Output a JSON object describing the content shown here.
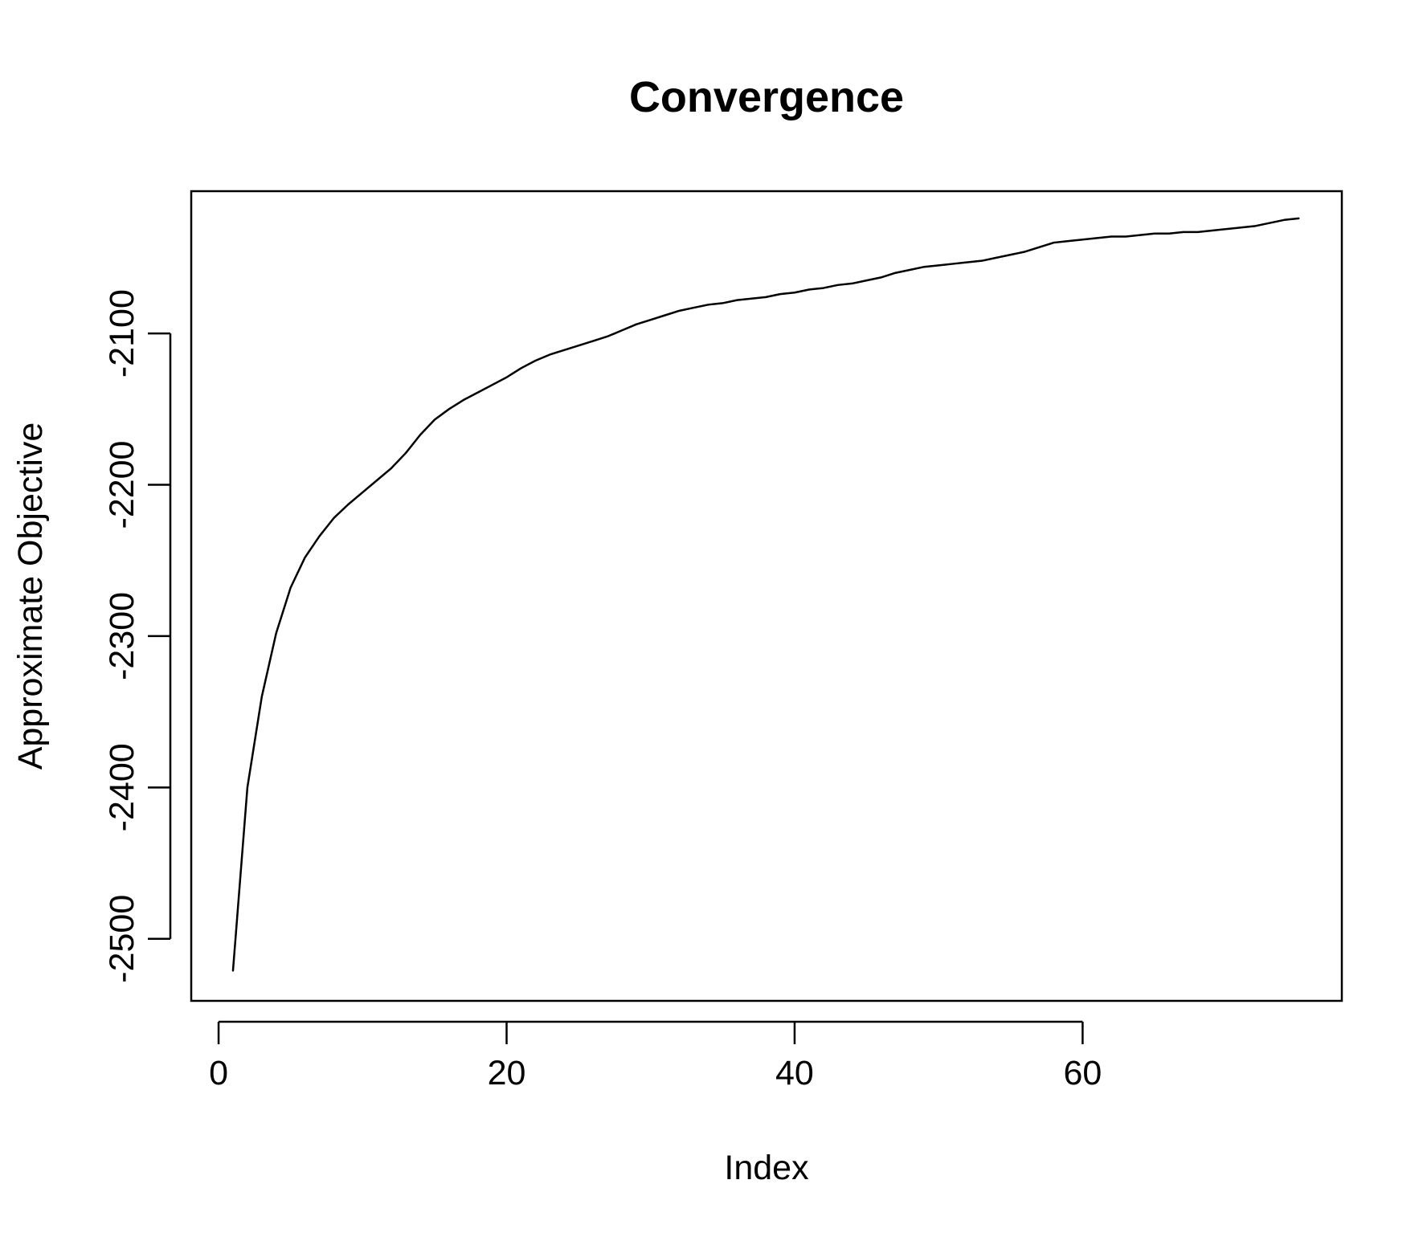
{
  "chart_data": {
    "type": "line",
    "title": "Convergence",
    "xlabel": "Index",
    "ylabel": "Approximate Objective",
    "xlim": [
      -1.9,
      78
    ],
    "ylim": [
      -2541,
      -2006
    ],
    "xticks": [
      0,
      20,
      40,
      60
    ],
    "yticks": [
      -2500,
      -2400,
      -2300,
      -2200,
      -2100
    ],
    "xtick_labels": [
      "0",
      "20",
      "40",
      "60"
    ],
    "ytick_labels": [
      "-2500",
      "-2400",
      "-2300",
      "-2200",
      "-2100"
    ],
    "grid": false,
    "legend": "none",
    "line_color": "#000000",
    "series": [
      {
        "x": [
          1,
          2,
          3,
          4,
          5,
          6,
          7,
          8,
          9,
          10,
          11,
          12,
          13,
          14,
          15,
          16,
          17,
          18,
          19,
          20,
          21,
          22,
          23,
          24,
          25,
          26,
          27,
          28,
          29,
          30,
          31,
          32,
          33,
          34,
          35,
          36,
          37,
          38,
          39,
          40,
          41,
          42,
          43,
          44,
          45,
          46,
          47,
          48,
          49,
          50,
          51,
          52,
          53,
          54,
          55,
          56,
          57,
          58,
          59,
          60,
          61,
          62,
          63,
          64,
          65,
          66,
          67,
          68,
          69,
          70,
          71,
          72,
          73,
          74,
          75
        ],
        "values": [
          -2521,
          -2400,
          -2340,
          -2298,
          -2268,
          -2248,
          -2234,
          -2222,
          -2213,
          -2205,
          -2197,
          -2189,
          -2179,
          -2167,
          -2157,
          -2150,
          -2144,
          -2139,
          -2134,
          -2129,
          -2123,
          -2118,
          -2114,
          -2111,
          -2108,
          -2105,
          -2102,
          -2098,
          -2094,
          -2091,
          -2088,
          -2085,
          -2083,
          -2081,
          -2080,
          -2078,
          -2077,
          -2076,
          -2074,
          -2073,
          -2071,
          -2070,
          -2068,
          -2067,
          -2065,
          -2063,
          -2060,
          -2058,
          -2056,
          -2055,
          -2054,
          -2053,
          -2052,
          -2050,
          -2048,
          -2046,
          -2043,
          -2040,
          -2039,
          -2038,
          -2037,
          -2036,
          -2036,
          -2035,
          -2034,
          -2034,
          -2033,
          -2033,
          -2032,
          -2031,
          -2030,
          -2029,
          -2027,
          -2025,
          -2024
        ]
      }
    ]
  }
}
